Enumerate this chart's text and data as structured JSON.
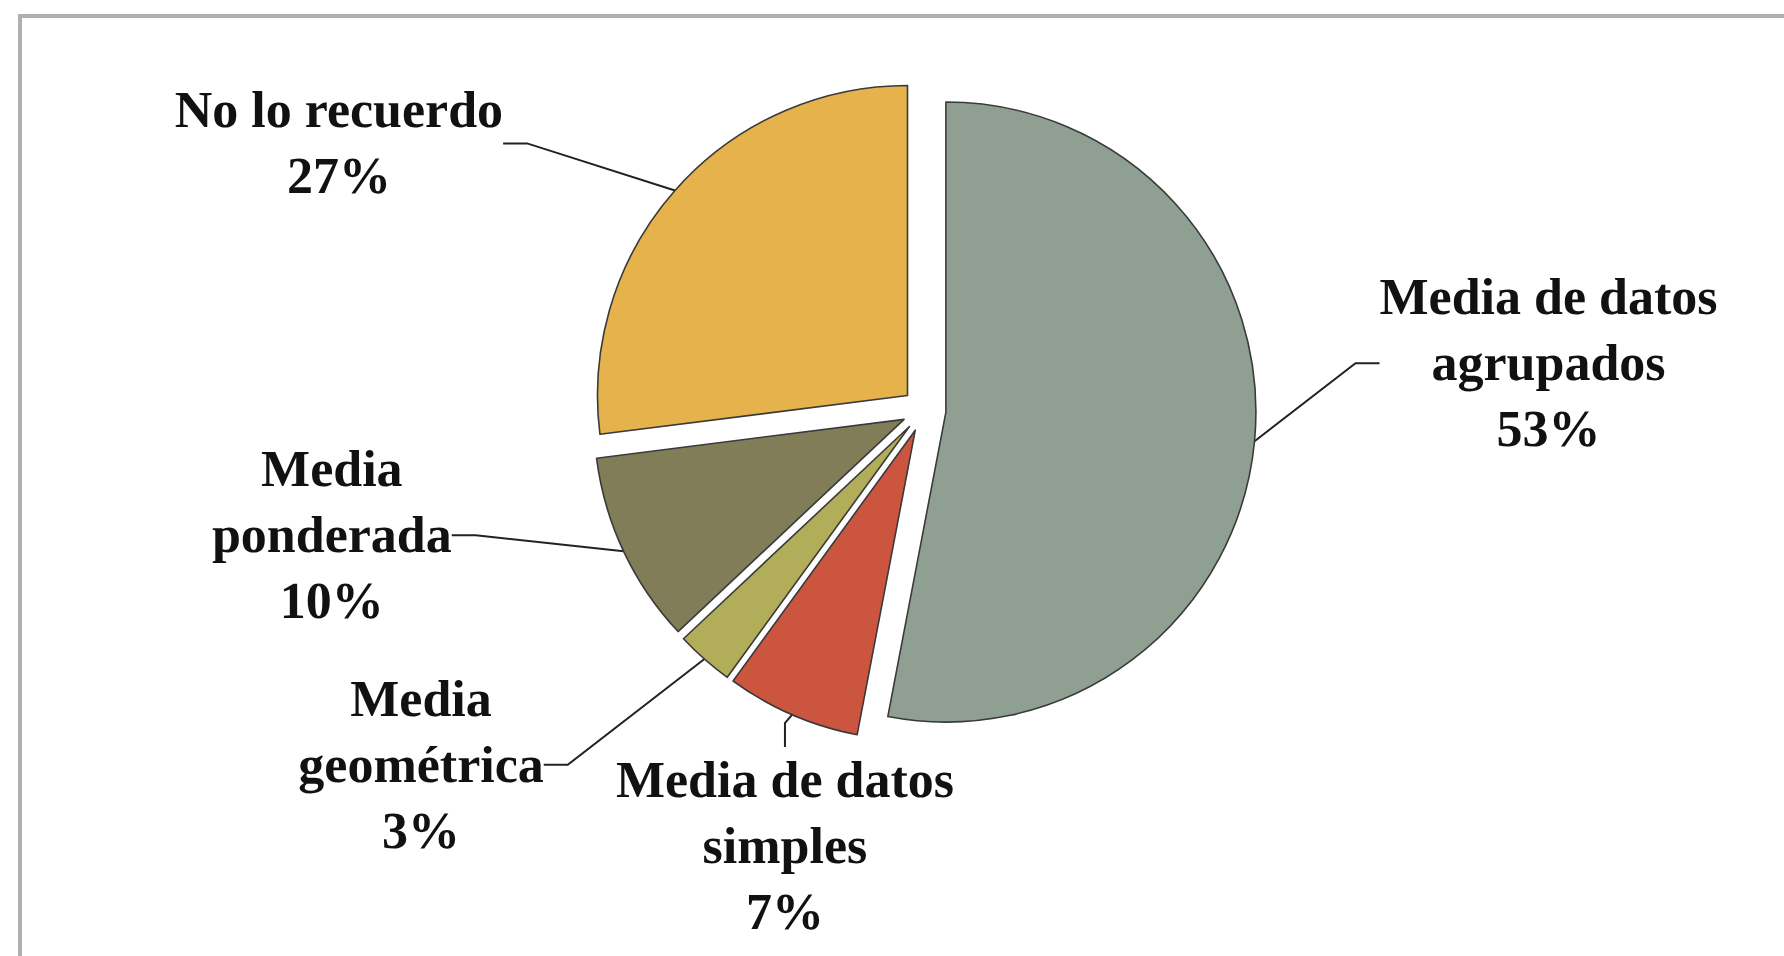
{
  "chart_data": {
    "type": "pie",
    "categories": [
      "Media de datos agrupados",
      "Media de datos simples",
      "Media geométrica",
      "Media ponderada",
      "No lo recuerdo"
    ],
    "values": [
      53,
      7,
      3,
      10,
      27
    ],
    "value_labels": [
      "53%",
      "7%",
      "3%",
      "10%",
      "27%"
    ],
    "colors": [
      "#8fa093",
      "#cc5540",
      "#b1ad58",
      "#807d58",
      "#e5b24c"
    ]
  }
}
